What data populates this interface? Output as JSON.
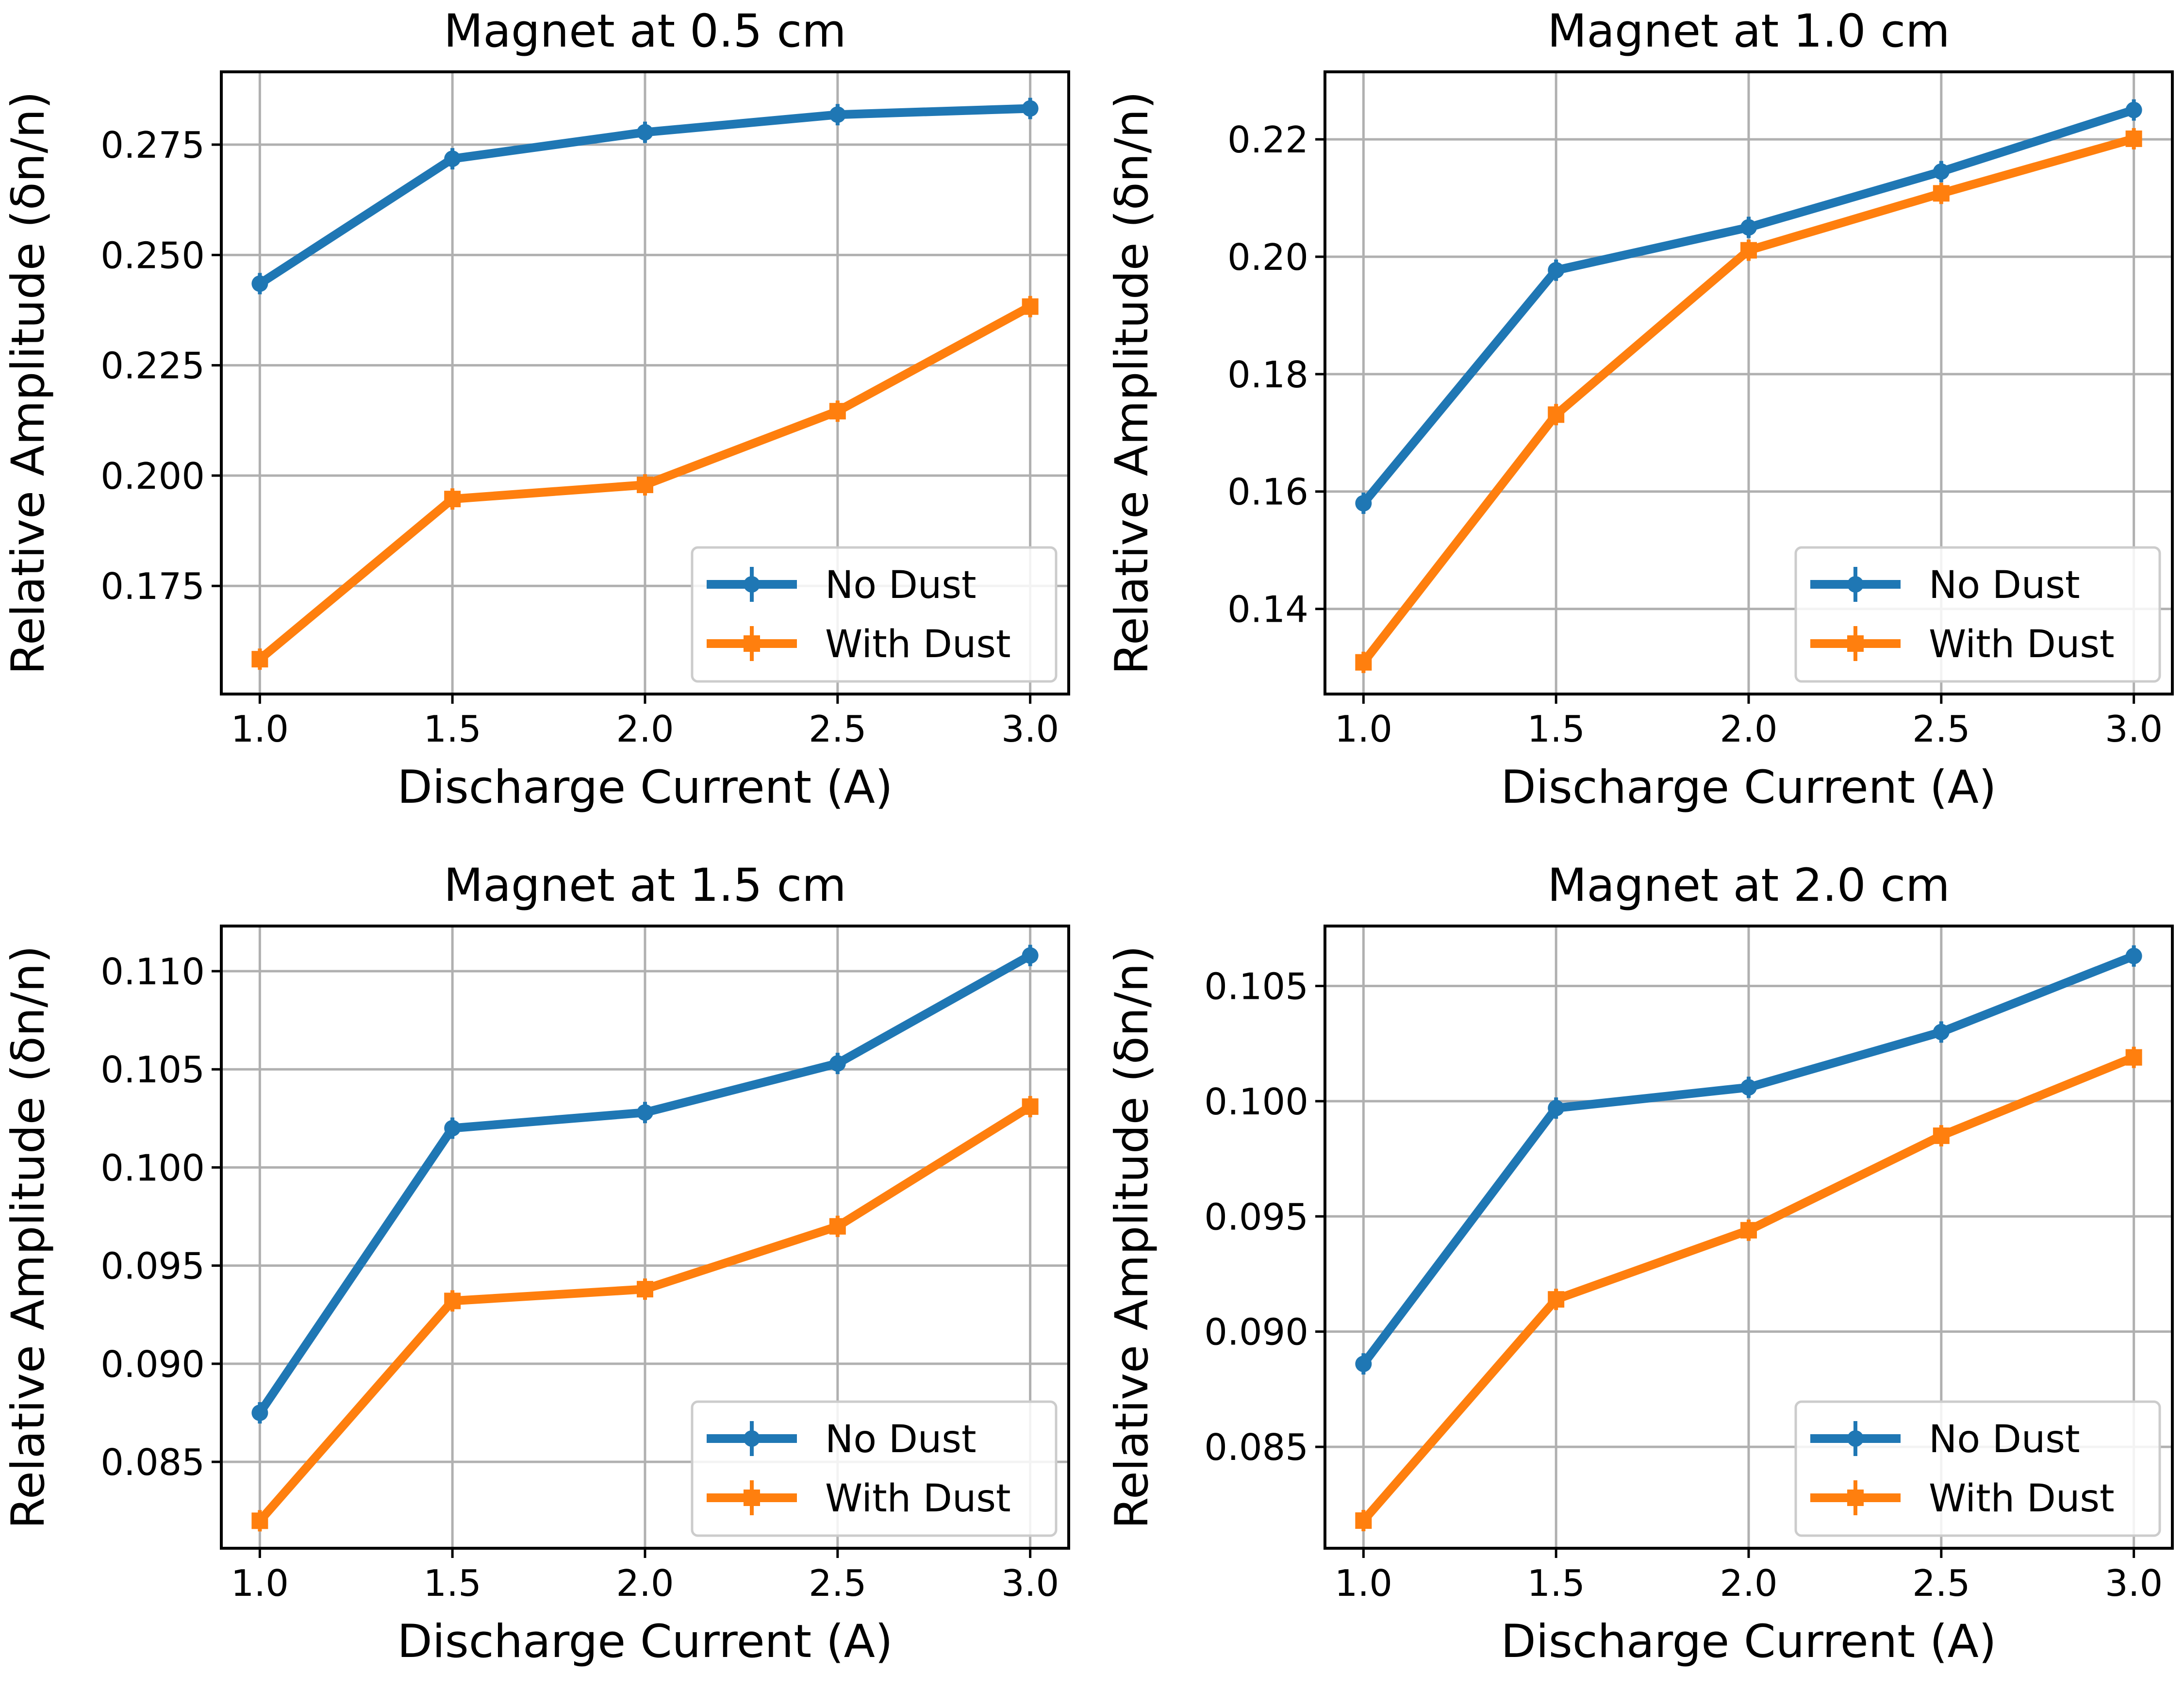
{
  "figure": {
    "colors": {
      "no_dust": "#1f77b4",
      "with_dust": "#ff7f0e"
    },
    "legend_location": "lower-right"
  },
  "chart_data": [
    {
      "type": "line",
      "title": "Magnet at 0.5 cm",
      "xlabel": "Discharge Current (A)",
      "ylabel": "Relative Amplitude (δn/n)",
      "x": [
        1.0,
        1.5,
        2.0,
        2.5,
        3.0
      ],
      "xlim": [
        0.9,
        3.1
      ],
      "ylim": [
        0.1505,
        0.2915
      ],
      "xticks": [
        "1.0",
        "1.5",
        "2.0",
        "2.5",
        "3.0"
      ],
      "yticks": [
        "0.175",
        "0.200",
        "0.225",
        "0.250",
        "0.275"
      ],
      "series": [
        {
          "name": "No Dust",
          "marker": "circle",
          "values": [
            0.2435,
            0.2718,
            0.2778,
            0.2818,
            0.2832
          ]
        },
        {
          "name": "With Dust",
          "marker": "square",
          "values": [
            0.1584,
            0.1947,
            0.1979,
            0.2146,
            0.2383
          ]
        }
      ]
    },
    {
      "type": "line",
      "title": "Magnet at 1.0 cm",
      "xlabel": "Discharge Current (A)",
      "ylabel": "Relative Amplitude (δn/n)",
      "x": [
        1.0,
        1.5,
        2.0,
        2.5,
        3.0
      ],
      "xlim": [
        0.9,
        3.1
      ],
      "ylim": [
        0.1255,
        0.2315
      ],
      "xticks": [
        "1.0",
        "1.5",
        "2.0",
        "2.5",
        "3.0"
      ],
      "yticks": [
        "0.14",
        "0.16",
        "0.18",
        "0.20",
        "0.22"
      ],
      "series": [
        {
          "name": "No Dust",
          "marker": "circle",
          "values": [
            0.158,
            0.1977,
            0.205,
            0.2145,
            0.225
          ]
        },
        {
          "name": "With Dust",
          "marker": "square",
          "values": [
            0.1309,
            0.1731,
            0.2011,
            0.2108,
            0.2201
          ]
        }
      ]
    },
    {
      "type": "line",
      "title": "Magnet at 1.5 cm",
      "xlabel": "Discharge Current (A)",
      "ylabel": "Relative Amplitude (δn/n)",
      "x": [
        1.0,
        1.5,
        2.0,
        2.5,
        3.0
      ],
      "xlim": [
        0.9,
        3.1
      ],
      "ylim": [
        0.0806,
        0.1123
      ],
      "xticks": [
        "1.0",
        "1.5",
        "2.0",
        "2.5",
        "3.0"
      ],
      "yticks": [
        "0.085",
        "0.090",
        "0.095",
        "0.100",
        "0.105",
        "0.110"
      ],
      "series": [
        {
          "name": "No Dust",
          "marker": "circle",
          "values": [
            0.0875,
            0.102,
            0.1028,
            0.1053,
            0.1108
          ]
        },
        {
          "name": "With Dust",
          "marker": "square",
          "values": [
            0.082,
            0.0932,
            0.0938,
            0.097,
            0.1031
          ]
        }
      ]
    },
    {
      "type": "line",
      "title": "Magnet at 2.0 cm",
      "xlabel": "Discharge Current (A)",
      "ylabel": "Relative Amplitude (δn/n)",
      "x": [
        1.0,
        1.5,
        2.0,
        2.5,
        3.0
      ],
      "xlim": [
        0.9,
        3.1
      ],
      "ylim": [
        0.0806,
        0.1076
      ],
      "xticks": [
        "1.0",
        "1.5",
        "2.0",
        "2.5",
        "3.0"
      ],
      "yticks": [
        "0.085",
        "0.090",
        "0.095",
        "0.100",
        "0.105"
      ],
      "series": [
        {
          "name": "No Dust",
          "marker": "circle",
          "values": [
            0.0886,
            0.0997,
            0.1006,
            0.103,
            0.1063
          ]
        },
        {
          "name": "With Dust",
          "marker": "square",
          "values": [
            0.0818,
            0.0914,
            0.0944,
            0.0985,
            0.1019
          ]
        }
      ]
    }
  ]
}
